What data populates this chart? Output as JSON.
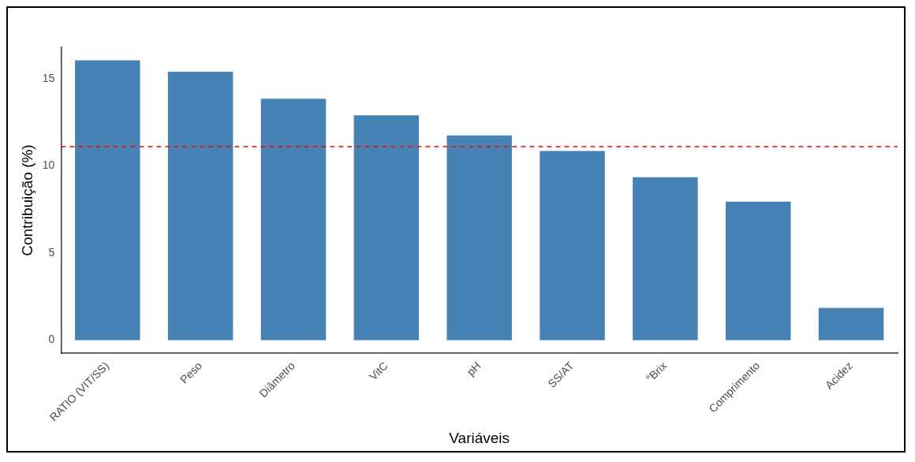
{
  "chart_data": {
    "type": "bar",
    "xlabel": "Variáveis",
    "ylabel": "Contribuição (%)",
    "categories": [
      "RATIO (VIT/SS)",
      "Peso",
      "Diâmetro",
      "VitC",
      "pH",
      "SS/AT",
      "°Brix",
      "Comprimento",
      "Acidez"
    ],
    "values": [
      16.05,
      15.4,
      13.85,
      12.9,
      11.75,
      10.85,
      9.35,
      7.95,
      1.85
    ],
    "color": "#4682b4",
    "ylim": [
      -0.75,
      16.8
    ],
    "yticks": [
      0,
      5,
      10,
      15
    ],
    "grid": false,
    "ref_lines": [
      {
        "axis": "y",
        "value": 11.1,
        "color": "#ff0000",
        "line_style": "dashed"
      }
    ]
  }
}
